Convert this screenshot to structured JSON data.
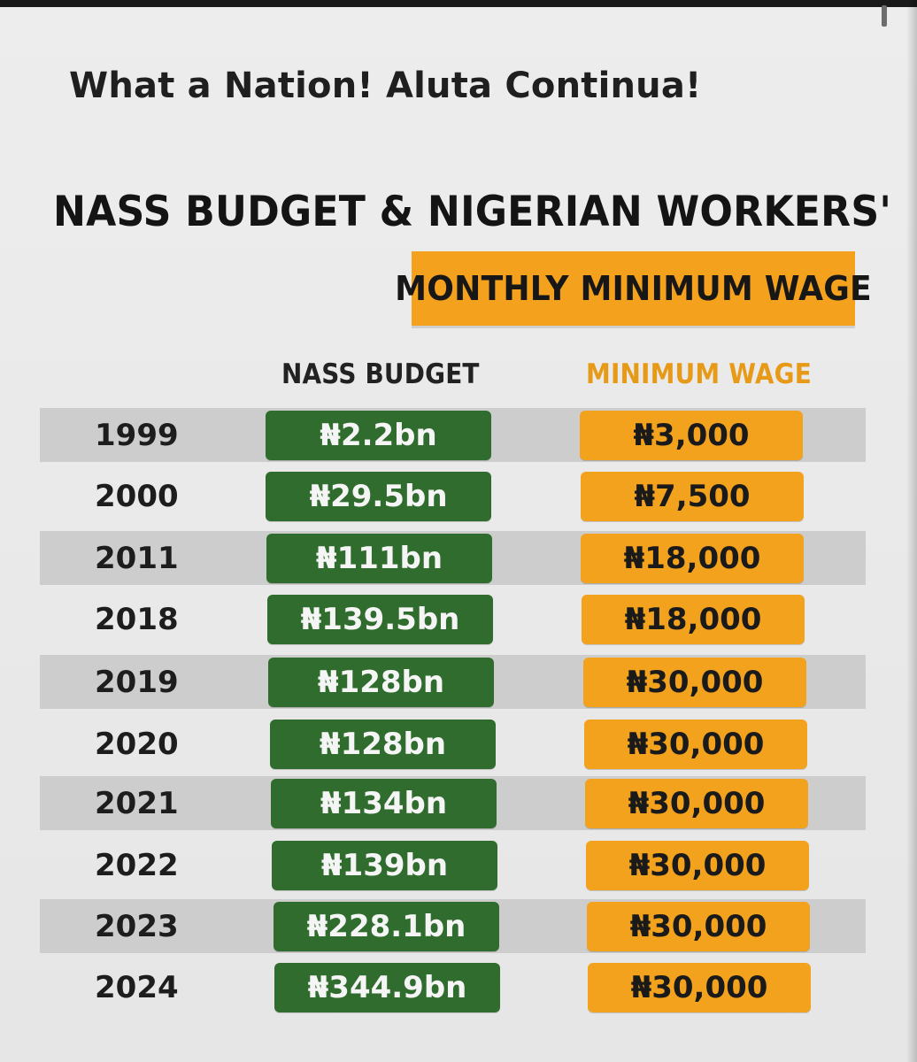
{
  "screen": {
    "headline": "What a Nation! Aluta Continua!"
  },
  "chart_data": {
    "type": "table",
    "title": "NASS BUDGET & NIGERIAN WORKERS'",
    "subtitle": "MONTHLY MINIMUM WAGE",
    "columns": [
      "NASS BUDGET",
      "MINIMUM WAGE"
    ],
    "rows": [
      {
        "year": "1999",
        "nass_budget": "₦2.2bn",
        "minimum_wage": "₦3,000"
      },
      {
        "year": "2000",
        "nass_budget": "₦29.5bn",
        "minimum_wage": "₦7,500"
      },
      {
        "year": "2011",
        "nass_budget": "₦111bn",
        "minimum_wage": "₦18,000"
      },
      {
        "year": "2018",
        "nass_budget": "₦139.5bn",
        "minimum_wage": "₦18,000"
      },
      {
        "year": "2019",
        "nass_budget": "₦128bn",
        "minimum_wage": "₦30,000"
      },
      {
        "year": "2020",
        "nass_budget": "₦128bn",
        "minimum_wage": "₦30,000"
      },
      {
        "year": "2021",
        "nass_budget": "₦134bn",
        "minimum_wage": "₦30,000"
      },
      {
        "year": "2022",
        "nass_budget": "₦139bn",
        "minimum_wage": "₦30,000"
      },
      {
        "year": "2023",
        "nass_budget": "₦228.1bn",
        "minimum_wage": "₦30,000"
      },
      {
        "year": "2024",
        "nass_budget": "₦344.9bn",
        "minimum_wage": "₦30,000"
      }
    ]
  },
  "colors": {
    "green": "#2f6c2d",
    "orange": "#f3a21e",
    "stripe": "#cdcdcd",
    "background": "#ececec"
  }
}
